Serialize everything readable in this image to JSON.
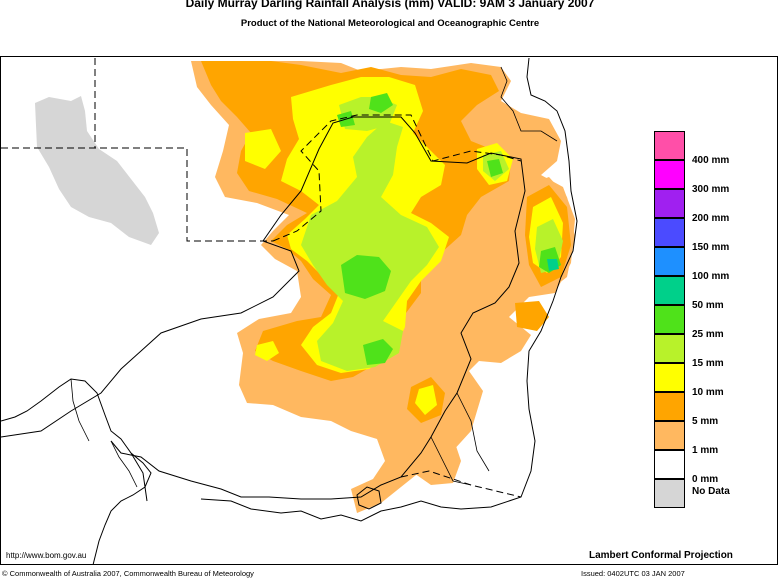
{
  "title": "Daily Murray Darling Rainfall Analysis (mm)  VALID: 9AM  3 January 2007",
  "subtitle": "Product of the National Meteorological and Oceanographic Centre",
  "legend": [
    {
      "label": "400 mm",
      "color": "#ff4fa8"
    },
    {
      "label": "300 mm",
      "color": "#ff00ff"
    },
    {
      "label": "200 mm",
      "color": "#a020f0"
    },
    {
      "label": "150 mm",
      "color": "#4b4bff"
    },
    {
      "label": "100 mm",
      "color": "#1e90ff"
    },
    {
      "label": "50 mm",
      "color": "#00d08a"
    },
    {
      "label": "25 mm",
      "color": "#4fe21a"
    },
    {
      "label": "15 mm",
      "color": "#b8f22a"
    },
    {
      "label": "10 mm",
      "color": "#ffff00"
    },
    {
      "label": "5 mm",
      "color": "#ffa500"
    },
    {
      "label": "1 mm",
      "color": "#ffb860"
    },
    {
      "label": "0 mm",
      "color": "#ffffff"
    },
    {
      "label": "No Data",
      "color": "#d6d6d6"
    }
  ],
  "footer": {
    "url": "http://www.bom.gov.au",
    "projection": "Lambert Conformal Projection",
    "copyright": "© Commonwealth of Australia 2007, Commonwealth Bureau of Meteorology",
    "issued": "Issued: 0402UTC 03 JAN 2007"
  }
}
